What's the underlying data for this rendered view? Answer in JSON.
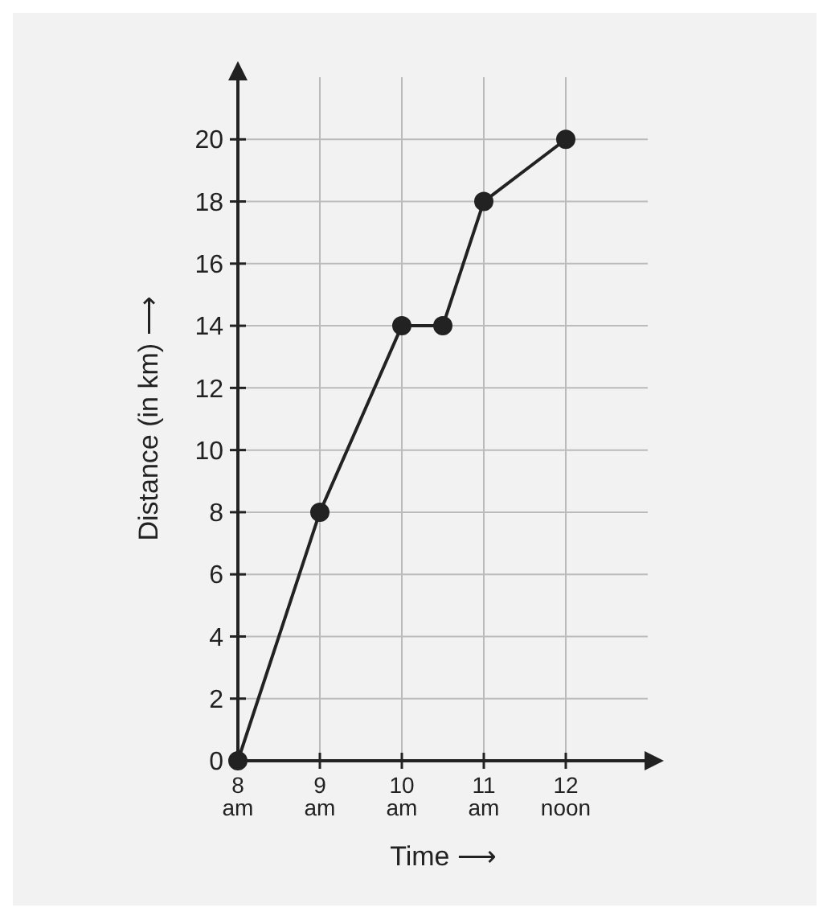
{
  "chart_data": {
    "type": "line",
    "xlabel": "Time ⟶",
    "ylabel": "Distance (in km) ⟶",
    "x": [
      8,
      9,
      10,
      10.5,
      11,
      12
    ],
    "series": [
      {
        "color": "#222222",
        "values": [
          0,
          8,
          14,
          14,
          18,
          20
        ]
      }
    ],
    "xlim": [
      8,
      13
    ],
    "ylim": [
      0,
      22
    ],
    "xticks": [
      {
        "value": 8,
        "label": "8 am"
      },
      {
        "value": 9,
        "label": "9 am"
      },
      {
        "value": 10,
        "label": "10 am"
      },
      {
        "value": 11,
        "label": "11 am"
      },
      {
        "value": 12,
        "label": "12 noon"
      }
    ],
    "yticks": [
      0,
      2,
      4,
      6,
      8,
      10,
      12,
      14,
      16,
      18,
      20
    ],
    "grid": true,
    "marker": "circle",
    "line_style": "solid"
  }
}
